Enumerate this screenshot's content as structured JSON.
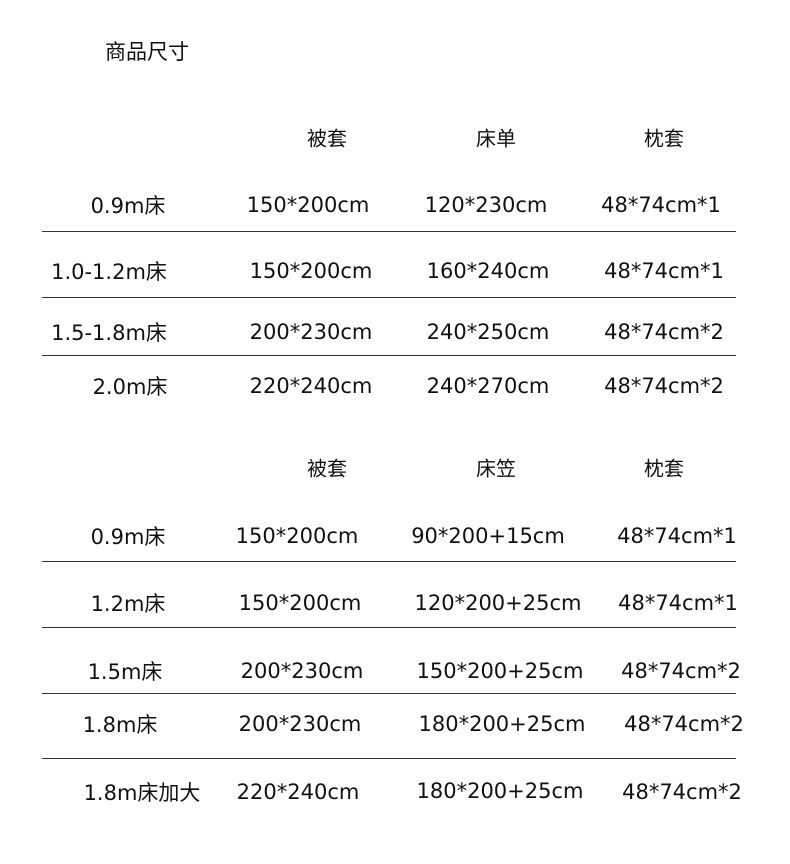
{
  "title": "商品尺寸",
  "table1": {
    "headers": [
      "被套",
      "床单",
      "枕套"
    ],
    "rows": [
      [
        "0.9m床",
        "150*200cm",
        "120*230cm",
        "48*74cm*1"
      ],
      [
        "1.0-1.2m床",
        "150*200cm",
        "160*240cm",
        "48*74cm*1"
      ],
      [
        "1.5-1.8m床",
        "200*230cm",
        "240*250cm",
        "48*74cm*2"
      ],
      [
        "2.0m床",
        "220*240cm",
        "240*270cm",
        "48*74cm*2"
      ]
    ]
  },
  "table2": {
    "headers": [
      "被套",
      "床笠",
      "枕套"
    ],
    "rows": [
      [
        "0.9m床",
        "150*200cm",
        "90*200+15cm",
        "48*74cm*1"
      ],
      [
        "1.2m床",
        "150*200cm",
        "120*200+25cm",
        "48*74cm*1"
      ],
      [
        "1.5m床",
        "200*230cm",
        "150*200+25cm",
        "48*74cm*2"
      ],
      [
        "1.8m床",
        "200*230cm",
        "180*200+25cm",
        "48*74cm*2"
      ],
      [
        "1.8m床加大",
        "220*240cm",
        "180*200+25cm",
        "48*74cm*2"
      ]
    ]
  }
}
